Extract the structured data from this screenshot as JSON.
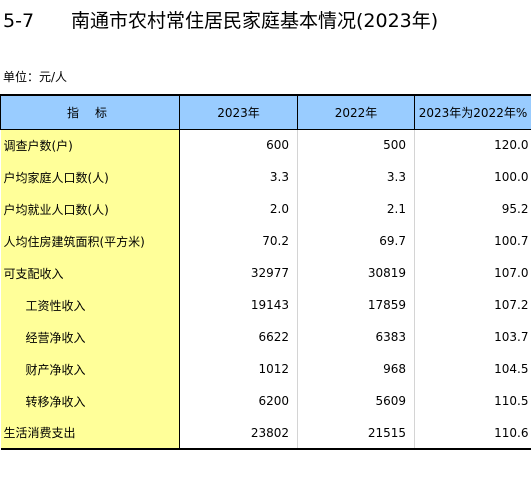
{
  "title": {
    "number": "5-7",
    "text": "南通市农村常住居民家庭基本情况(2023年)"
  },
  "unit": "单位：元/人",
  "table": {
    "headers": [
      "指标",
      "2023年",
      "2022年",
      "2023年为2022年%"
    ],
    "rows": [
      {
        "label": "调查户数(户)",
        "indent": false,
        "v2023": "600",
        "v2022": "500",
        "ratio": "120.0"
      },
      {
        "label": "户均家庭人口数(人)",
        "indent": false,
        "v2023": "3.3",
        "v2022": "3.3",
        "ratio": "100.0"
      },
      {
        "label": "户均就业人口数(人)",
        "indent": false,
        "v2023": "2.0",
        "v2022": "2.1",
        "ratio": "95.2"
      },
      {
        "label": "人均住房建筑面积(平方米)",
        "indent": false,
        "v2023": "70.2",
        "v2022": "69.7",
        "ratio": "100.7"
      },
      {
        "label": "可支配收入",
        "indent": false,
        "v2023": "32977",
        "v2022": "30819",
        "ratio": "107.0"
      },
      {
        "label": "工资性收入",
        "indent": true,
        "v2023": "19143",
        "v2022": "17859",
        "ratio": "107.2"
      },
      {
        "label": "经营净收入",
        "indent": true,
        "v2023": "6622",
        "v2022": "6383",
        "ratio": "103.7"
      },
      {
        "label": "财产净收入",
        "indent": true,
        "v2023": "1012",
        "v2022": "968",
        "ratio": "104.5"
      },
      {
        "label": "转移净收入",
        "indent": true,
        "v2023": "6200",
        "v2022": "5609",
        "ratio": "110.5"
      },
      {
        "label": "生活消费支出",
        "indent": false,
        "v2023": "23802",
        "v2022": "21515",
        "ratio": "110.6"
      }
    ]
  },
  "colors": {
    "header_bg": "#99ccff",
    "label_column_bg": "#ffff99"
  }
}
